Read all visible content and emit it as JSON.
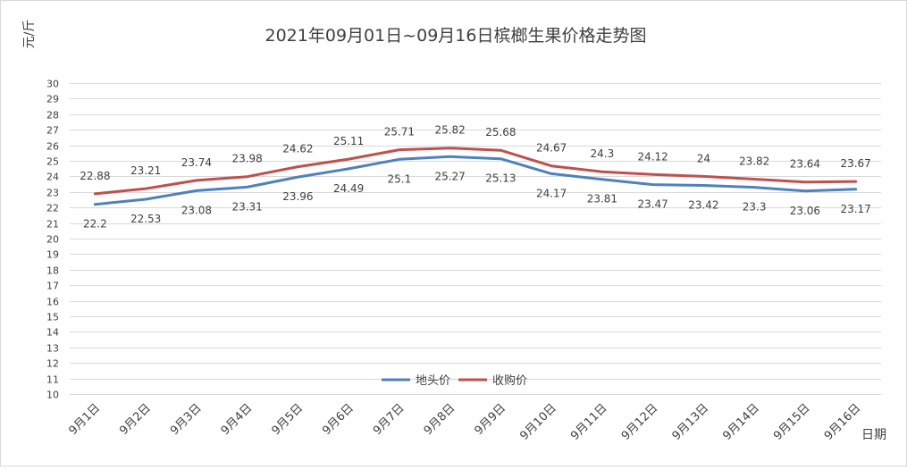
{
  "chart_data": {
    "type": "line",
    "title": "2021年09月01日~09月16日槟榔生果价格走势图",
    "ylabel": "元/斤",
    "xlabel": "日期",
    "ylim": [
      10,
      30
    ],
    "yticks": [
      10,
      11,
      12,
      13,
      14,
      15,
      16,
      17,
      18,
      19,
      20,
      21,
      22,
      23,
      24,
      25,
      26,
      27,
      28,
      29,
      30
    ],
    "grid": true,
    "legend": "bottom-center",
    "categories": [
      "9月1日",
      "9月2日",
      "9月3日",
      "9月4日",
      "9月5日",
      "9月6日",
      "9月7日",
      "9月8日",
      "9月9日",
      "9月10日",
      "9月11日",
      "9月12日",
      "9月13日",
      "9月14日",
      "9月15日",
      "9月16日"
    ],
    "series": [
      {
        "name": "地头价",
        "color": "#4f81bd",
        "label_position": "below",
        "values": [
          22.2,
          22.53,
          23.08,
          23.31,
          23.96,
          24.49,
          25.1,
          25.27,
          25.13,
          24.17,
          23.81,
          23.47,
          23.42,
          23.3,
          23.06,
          23.17
        ]
      },
      {
        "name": "收购价",
        "color": "#c0504d",
        "label_position": "above",
        "values": [
          22.88,
          23.21,
          23.74,
          23.98,
          24.62,
          25.11,
          25.71,
          25.82,
          25.68,
          24.67,
          24.3,
          24.12,
          24,
          23.82,
          23.64,
          23.67
        ]
      }
    ]
  }
}
